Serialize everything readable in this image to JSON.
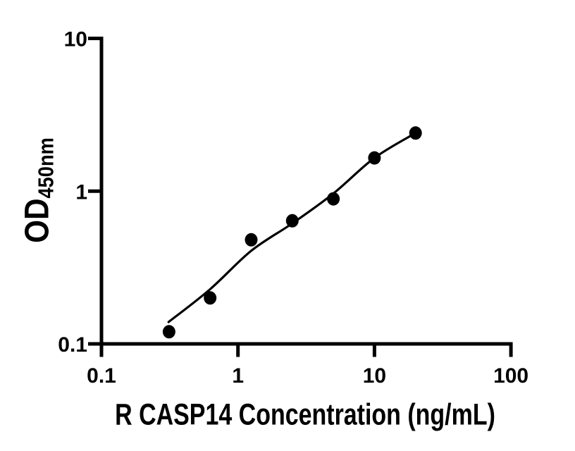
{
  "page": {
    "background": "#ffffff",
    "text_color": "#000000"
  },
  "chart_data": {
    "type": "scatter",
    "title": "",
    "xlabel": "R CASP14 Concentration (ng/mL)",
    "ylabel_main": "OD",
    "ylabel_subscript": "450nm",
    "x_scale": "log",
    "y_scale": "log",
    "xlim": [
      0.1,
      100
    ],
    "ylim": [
      0.1,
      10
    ],
    "x_ticks": [
      "0.1",
      "1",
      "10",
      "100"
    ],
    "y_ticks": [
      "0.1",
      "1",
      "10"
    ],
    "grid": false,
    "legend": false,
    "axis_color": "#000000",
    "marker": {
      "shape": "circle",
      "fill": "#000000",
      "radius_px": 9.5
    },
    "series": [
      {
        "name": "standard-points",
        "kind": "scatter",
        "x": [
          0.3125,
          0.625,
          1.25,
          2.5,
          5,
          10,
          20
        ],
        "y": [
          0.12,
          0.2,
          0.48,
          0.64,
          0.89,
          1.65,
          2.4
        ]
      },
      {
        "name": "fitted-curve",
        "kind": "line",
        "stroke": "#000000",
        "stroke_width_px": 3.2,
        "x": [
          0.31,
          0.625,
          1.25,
          2.5,
          5,
          10,
          20
        ],
        "y": [
          0.139,
          0.228,
          0.407,
          0.615,
          0.965,
          1.65,
          2.4
        ]
      }
    ]
  }
}
